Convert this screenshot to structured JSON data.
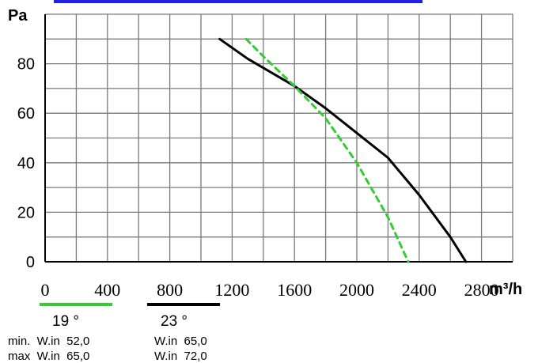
{
  "chart_data": {
    "type": "line",
    "ylabel": "Pa",
    "xlabel": "m³/h",
    "xlim": [
      0,
      3000
    ],
    "ylim": [
      0,
      100
    ],
    "grid": true,
    "x_ticks": [
      0,
      400,
      800,
      1200,
      1600,
      2000,
      2400,
      2800
    ],
    "x_tick_labels": [
      "0",
      "400",
      "800",
      "1200",
      "1600",
      "2000",
      "2400",
      "2800"
    ],
    "y_ticks": [
      0,
      20,
      40,
      60,
      80
    ],
    "y_tick_labels": [
      "0",
      "20",
      "40",
      "60",
      "80"
    ],
    "series": [
      {
        "color": "#000000",
        "style": "solid",
        "x": [
          1120,
          1300,
          1600,
          1800,
          2000,
          2200,
          2400,
          2600,
          2700
        ],
        "y": [
          90,
          82,
          71,
          62,
          52,
          42,
          27,
          10,
          0
        ]
      },
      {
        "color": "#33cc33",
        "style": "dashed",
        "x": [
          1290,
          1400,
          1600,
          1800,
          2000,
          2200,
          2330
        ],
        "y": [
          90,
          83,
          71,
          58,
          40,
          18,
          0
        ]
      }
    ]
  },
  "legend": [
    {
      "color": "#33cc33",
      "temp": "19 °",
      "min": "min.  W.in  52,0",
      "max": "max  W.in  65,0"
    },
    {
      "color": "#000000",
      "temp": "23 °",
      "min": "W.in  65,0",
      "max": "W.in  72,0"
    }
  ],
  "header_bar_color": "#2222dd"
}
